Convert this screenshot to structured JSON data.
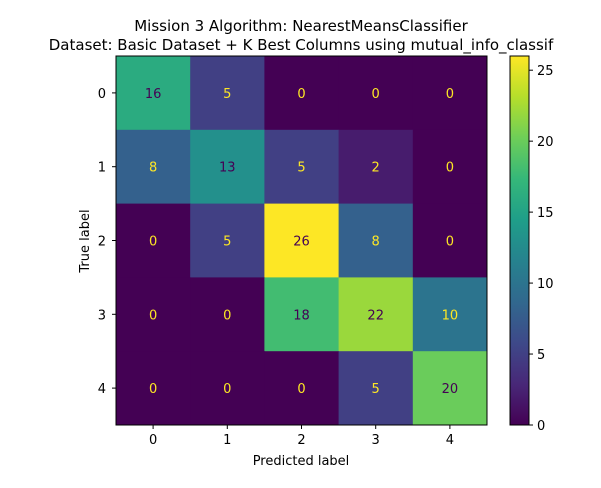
{
  "chart_data": {
    "type": "heatmap",
    "title_line1": "Mission 3 Algorithm: NearestMeansClassifier",
    "title_line2": "Dataset: Basic Dataset + K Best Columns using mutual_info_classif",
    "xlabel": "Predicted label",
    "ylabel": "True label",
    "x_categories": [
      "0",
      "1",
      "2",
      "3",
      "4"
    ],
    "y_categories": [
      "0",
      "1",
      "2",
      "3",
      "4"
    ],
    "matrix": [
      [
        16,
        5,
        0,
        0,
        0
      ],
      [
        8,
        13,
        5,
        2,
        0
      ],
      [
        0,
        5,
        26,
        8,
        0
      ],
      [
        0,
        0,
        18,
        22,
        10
      ],
      [
        0,
        0,
        0,
        5,
        20
      ]
    ],
    "colormap": "viridis",
    "vmin": 0,
    "vmax": 26,
    "colorbar_ticks": [
      0,
      5,
      10,
      15,
      20,
      25
    ],
    "light_text_color": "#fde725",
    "dark_text_color": "#440154"
  }
}
